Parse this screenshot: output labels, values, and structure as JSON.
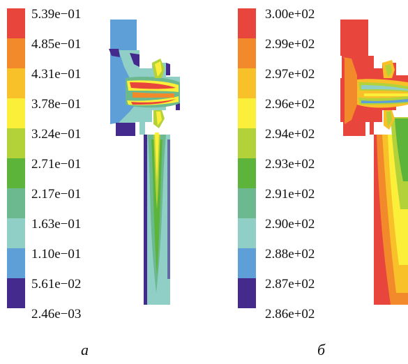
{
  "panels": [
    {
      "label": "а",
      "colorbar_ticks": [
        "5.39e−01",
        "4.85e−01",
        "4.31e−01",
        "3.78e−01",
        "3.24e−01",
        "2.71e−01",
        "2.17e−01",
        "1.63e−01",
        "1.10e−01",
        "5.61e−02",
        "2.46e−03"
      ],
      "colorbar_colors": [
        "#e8453c",
        "#f2892a",
        "#f8c12a",
        "#fbef3a",
        "#b3d23a",
        "#5cb43a",
        "#6cb98f",
        "#8fcfc6",
        "#5d9fd6",
        "#442a8c"
      ]
    },
    {
      "label": "б",
      "colorbar_ticks": [
        "3.00e+02",
        "2.99e+02",
        "2.97e+02",
        "2.96e+02",
        "2.94e+02",
        "2.93e+02",
        "2.91e+02",
        "2.90e+02",
        "2.88e+02",
        "2.87e+02",
        "2.86e+02"
      ],
      "colorbar_colors": [
        "#e8453c",
        "#f2892a",
        "#f8c12a",
        "#fbef3a",
        "#b3d23a",
        "#5cb43a",
        "#6cb98f",
        "#8fcfc6",
        "#5d9fd6",
        "#442a8c"
      ]
    }
  ]
}
